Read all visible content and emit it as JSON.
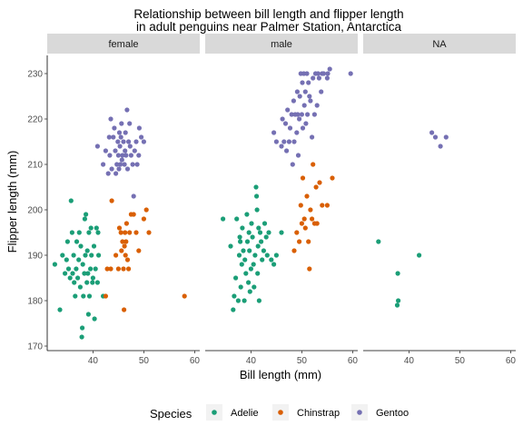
{
  "chart_data": {
    "type": "scatter",
    "title_lines": [
      "Relationship between bill length and flipper length",
      "in adult penguins near Palmer Station, Antarctica"
    ],
    "xlabel": "Bill length (mm)",
    "ylabel": "Flipper length (mm)",
    "xlim": [
      31,
      61
    ],
    "ylim": [
      169,
      234
    ],
    "x_ticks": [
      40,
      50,
      60
    ],
    "y_ticks": [
      170,
      180,
      190,
      200,
      210,
      220,
      230
    ],
    "facets": [
      "female",
      "male",
      "NA"
    ],
    "legend_title": "Species",
    "legend_position": "bottom",
    "grid": false,
    "series": [
      {
        "name": "Adelie",
        "color": "#1b9e77",
        "points": {
          "female": [
            [
              32.5,
              188
            ],
            [
              33.5,
              178
            ],
            [
              34,
              190
            ],
            [
              34.5,
              186
            ],
            [
              34.8,
              189
            ],
            [
              35,
              193
            ],
            [
              35.2,
              187
            ],
            [
              35.5,
              185
            ],
            [
              35.7,
              202
            ],
            [
              35.9,
              195
            ],
            [
              36,
              186
            ],
            [
              36.2,
              190
            ],
            [
              36.3,
              184
            ],
            [
              36.5,
              181
            ],
            [
              36.7,
              187
            ],
            [
              36.8,
              193
            ],
            [
              37,
              185
            ],
            [
              37.2,
              189
            ],
            [
              37.3,
              195
            ],
            [
              37.5,
              183
            ],
            [
              37.6,
              192
            ],
            [
              37.8,
              172
            ],
            [
              37.9,
              174
            ],
            [
              38,
              188
            ],
            [
              38.1,
              181
            ],
            [
              38.3,
              186
            ],
            [
              38.4,
              198
            ],
            [
              38.5,
              190
            ],
            [
              38.6,
              199
            ],
            [
              38.8,
              184
            ],
            [
              38.9,
              191
            ],
            [
              39,
              186
            ],
            [
              39.1,
              177
            ],
            [
              39.2,
              195
            ],
            [
              39.3,
              181
            ],
            [
              39.5,
              187
            ],
            [
              39.6,
              196
            ],
            [
              39.7,
              190
            ],
            [
              39.9,
              184
            ],
            [
              40,
              185
            ],
            [
              40.2,
              192
            ],
            [
              40.3,
              176
            ],
            [
              40.5,
              187
            ],
            [
              40.7,
              196
            ],
            [
              40.9,
              184
            ],
            [
              41,
              195
            ],
            [
              41.1,
              190
            ],
            [
              42,
              181
            ]
          ],
          "male": [
            [
              34.5,
              198
            ],
            [
              36,
              192
            ],
            [
              36.5,
              178
            ],
            [
              36.7,
              181
            ],
            [
              37,
              185
            ],
            [
              37.2,
              198
            ],
            [
              37.5,
              180
            ],
            [
              37.7,
              190
            ],
            [
              37.8,
              194
            ],
            [
              37.9,
              193
            ],
            [
              38,
              183
            ],
            [
              38.2,
              188
            ],
            [
              38.3,
              196
            ],
            [
              38.5,
              191
            ],
            [
              38.7,
              180
            ],
            [
              38.8,
              189
            ],
            [
              39,
              186
            ],
            [
              39.2,
              199
            ],
            [
              39.3,
              193
            ],
            [
              39.5,
              184
            ],
            [
              39.6,
              195
            ],
            [
              39.7,
              191
            ],
            [
              39.8,
              182
            ],
            [
              40,
              187
            ],
            [
              40.1,
              197
            ],
            [
              40.3,
              194
            ],
            [
              40.5,
              188
            ],
            [
              40.6,
              183
            ],
            [
              40.8,
              190
            ],
            [
              41,
              205
            ],
            [
              41.1,
              203
            ],
            [
              41.2,
              200
            ],
            [
              41.3,
              186
            ],
            [
              41.4,
              192
            ],
            [
              41.5,
              196
            ],
            [
              41.6,
              180
            ],
            [
              41.8,
              195
            ],
            [
              42,
              193
            ],
            [
              42.2,
              189
            ],
            [
              42.5,
              191
            ],
            [
              42.7,
              197
            ],
            [
              43,
              194
            ],
            [
              43.2,
              190
            ],
            [
              43.5,
              195
            ],
            [
              44,
              189
            ],
            [
              44.5,
              188
            ],
            [
              45,
              190
            ],
            [
              46,
              195
            ]
          ],
          "NA": [
            [
              34,
              193
            ],
            [
              37.8,
              186
            ],
            [
              37.9,
              180
            ],
            [
              37.7,
              179
            ],
            [
              42,
              190
            ]
          ]
        }
      },
      {
        "name": "Chinstrap",
        "color": "#d95f02",
        "points": {
          "female": [
            [
              42.5,
              181
            ],
            [
              42.8,
              187
            ],
            [
              43.5,
              187
            ],
            [
              43.7,
              202
            ],
            [
              44.5,
              190
            ],
            [
              45,
              187
            ],
            [
              45.2,
              196
            ],
            [
              45.5,
              195
            ],
            [
              45.6,
              191
            ],
            [
              45.8,
              193
            ],
            [
              46,
              187
            ],
            [
              46.1,
              178
            ],
            [
              46.2,
              192
            ],
            [
              46.3,
              195
            ],
            [
              46.4,
              190
            ],
            [
              46.5,
              193
            ],
            [
              46.6,
              197
            ],
            [
              46.8,
              189
            ],
            [
              47,
              187
            ],
            [
              47.2,
              195
            ],
            [
              47.5,
              199
            ],
            [
              48,
              199
            ],
            [
              48.5,
              195
            ],
            [
              49,
              191
            ],
            [
              50,
              198
            ],
            [
              50.5,
              200
            ],
            [
              51,
              195
            ],
            [
              58,
              181
            ]
          ],
          "male": [
            [
              48.5,
              191
            ],
            [
              49,
              195
            ],
            [
              49.5,
              193
            ],
            [
              49.8,
              201
            ],
            [
              50,
              197
            ],
            [
              50.2,
              207
            ],
            [
              50.5,
              198
            ],
            [
              50.7,
              196
            ],
            [
              51,
              203
            ],
            [
              51.3,
              193
            ],
            [
              51.5,
              187
            ],
            [
              51.7,
              200
            ],
            [
              52,
              198
            ],
            [
              52.2,
              210
            ],
            [
              52.5,
              197
            ],
            [
              52.8,
              205
            ],
            [
              53,
              197
            ],
            [
              53.5,
              206
            ],
            [
              54,
              201
            ],
            [
              55,
              201
            ],
            [
              56,
              207
            ]
          ],
          "NA": []
        }
      },
      {
        "name": "Gentoo",
        "color": "#7570b3",
        "points": {
          "female": [
            [
              40.9,
              214
            ],
            [
              42,
              210
            ],
            [
              42.5,
              213
            ],
            [
              43,
              208
            ],
            [
              43.2,
              216
            ],
            [
              43.3,
              212
            ],
            [
              43.5,
              220
            ],
            [
              43.7,
              209
            ],
            [
              44,
              216
            ],
            [
              44.2,
              218
            ],
            [
              44.4,
              213
            ],
            [
              44.5,
              208
            ],
            [
              44.7,
              210
            ],
            [
              44.9,
              215
            ],
            [
              45,
              212
            ],
            [
              45.1,
              209
            ],
            [
              45.2,
              217
            ],
            [
              45.3,
              214
            ],
            [
              45.4,
              210
            ],
            [
              45.5,
              216
            ],
            [
              45.6,
              219
            ],
            [
              45.7,
              211
            ],
            [
              45.8,
              212
            ],
            [
              46,
              215
            ],
            [
              46.2,
              210
            ],
            [
              46.3,
              213
            ],
            [
              46.4,
              217
            ],
            [
              46.5,
              212
            ],
            [
              46.7,
              222
            ],
            [
              46.8,
              209
            ],
            [
              47,
              215
            ],
            [
              47.2,
              219
            ],
            [
              47.3,
              214
            ],
            [
              47.5,
              212
            ],
            [
              47.8,
              210
            ],
            [
              48,
              203
            ],
            [
              48.2,
              213
            ],
            [
              48.5,
              215
            ],
            [
              48.7,
              210
            ],
            [
              49,
              212
            ],
            [
              49.1,
              218
            ],
            [
              49.5,
              216
            ],
            [
              50,
              215
            ]
          ],
          "male": [
            [
              44.5,
              217
            ],
            [
              45,
              215
            ],
            [
              46,
              214
            ],
            [
              46.2,
              220
            ],
            [
              46.5,
              215
            ],
            [
              46.8,
              219
            ],
            [
              47,
              213
            ],
            [
              47.2,
              222
            ],
            [
              47.5,
              215
            ],
            [
              47.7,
              218
            ],
            [
              48,
              221
            ],
            [
              48.2,
              210
            ],
            [
              48.4,
              224
            ],
            [
              48.5,
              215
            ],
            [
              48.7,
              221
            ],
            [
              49,
              217
            ],
            [
              49.1,
              226
            ],
            [
              49.2,
              221
            ],
            [
              49.3,
              212
            ],
            [
              49.5,
              220
            ],
            [
              49.6,
              225
            ],
            [
              49.8,
              230
            ],
            [
              50,
              221
            ],
            [
              50.1,
              228
            ],
            [
              50.2,
              218
            ],
            [
              50.4,
              230
            ],
            [
              50.5,
              223
            ],
            [
              50.7,
              226
            ],
            [
              50.8,
              219
            ],
            [
              51,
              230
            ],
            [
              51.1,
              221
            ],
            [
              51.3,
              228
            ],
            [
              51.5,
              225
            ],
            [
              51.7,
              224
            ],
            [
              52,
              216
            ],
            [
              52.2,
              229
            ],
            [
              52.5,
              221
            ],
            [
              52.7,
              230
            ],
            [
              53,
              223
            ],
            [
              53.2,
              230
            ],
            [
              53.4,
              229
            ],
            [
              53.8,
              226
            ],
            [
              54,
              230
            ],
            [
              54.3,
              230
            ],
            [
              55,
              229
            ],
            [
              55.1,
              230
            ],
            [
              55.5,
              231
            ],
            [
              59.6,
              230
            ]
          ],
          "NA": [
            [
              44.5,
              217
            ],
            [
              45.2,
              216
            ],
            [
              46.2,
              214
            ],
            [
              47.3,
              216
            ]
          ]
        }
      }
    ]
  }
}
